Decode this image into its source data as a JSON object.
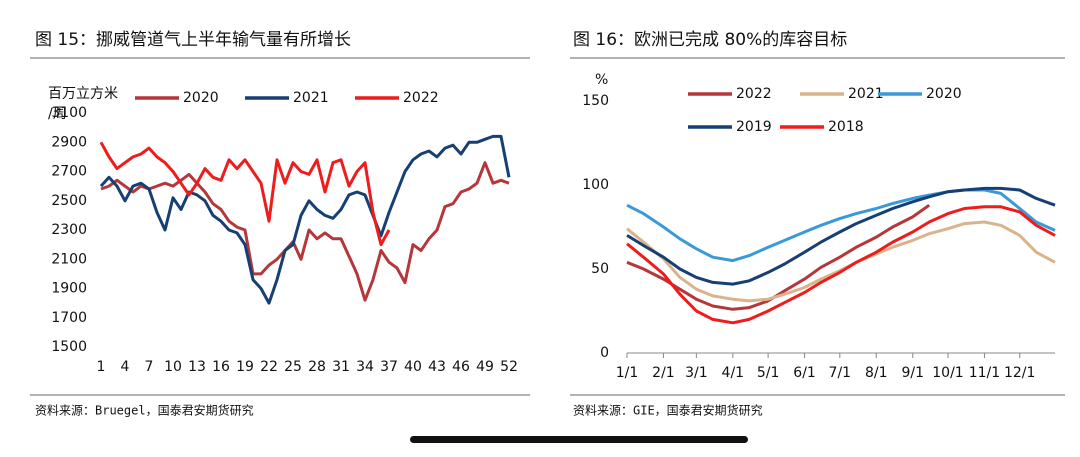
{
  "chart_data": [
    {
      "type": "line",
      "title": "图 15：挪威管道气上半年输气量有所增长",
      "y_label": [
        "百万立方米",
        "/周"
      ],
      "source": "资料来源：Bruegel，国泰君安期货研究",
      "x": [
        1,
        2,
        3,
        4,
        5,
        6,
        7,
        8,
        9,
        10,
        11,
        12,
        13,
        14,
        15,
        16,
        17,
        18,
        19,
        20,
        21,
        22,
        23,
        24,
        25,
        26,
        27,
        28,
        29,
        30,
        31,
        32,
        33,
        34,
        35,
        36,
        37,
        38,
        39,
        40,
        41,
        42,
        43,
        44,
        45,
        46,
        47,
        48,
        49,
        50,
        51,
        52
      ],
      "xlim": [
        0,
        53
      ],
      "xticks": [
        1,
        4,
        7,
        10,
        13,
        16,
        19,
        22,
        25,
        28,
        31,
        34,
        37,
        40,
        43,
        46,
        49,
        52
      ],
      "ylim": [
        1500,
        3100
      ],
      "yticks": [
        1500,
        1700,
        1900,
        2100,
        2300,
        2500,
        2700,
        2900,
        3100
      ],
      "series": [
        {
          "name": "2020",
          "color": "#b5373b",
          "values": [
            2580,
            2600,
            2640,
            2600,
            2560,
            2600,
            2580,
            2600,
            2620,
            2600,
            2640,
            2680,
            2620,
            2560,
            2480,
            2440,
            2360,
            2320,
            2300,
            2000,
            2000,
            2060,
            2100,
            2160,
            2220,
            2100,
            2300,
            2240,
            2280,
            2240,
            2240,
            2120,
            2000,
            1820,
            1960,
            2160,
            2080,
            2040,
            1940,
            2200,
            2160,
            2240,
            2300,
            2460,
            2480,
            2560,
            2580,
            2620,
            2760,
            2620,
            2640,
            2620
          ]
        },
        {
          "name": "2021",
          "color": "#163f73",
          "values": [
            2600,
            2660,
            2600,
            2500,
            2600,
            2620,
            2580,
            2420,
            2300,
            2520,
            2440,
            2560,
            2540,
            2500,
            2400,
            2360,
            2300,
            2280,
            2200,
            1960,
            1900,
            1800,
            1960,
            2160,
            2200,
            2400,
            2500,
            2440,
            2400,
            2380,
            2440,
            2540,
            2560,
            2540,
            2400,
            2260,
            2420,
            2560,
            2700,
            2780,
            2820,
            2840,
            2800,
            2860,
            2880,
            2820,
            2900,
            2900,
            2920,
            2940,
            2940,
            2660
          ]
        },
        {
          "name": "2022",
          "color": "#ee1c1c",
          "values": [
            2900,
            2800,
            2720,
            2760,
            2800,
            2820,
            2860,
            2800,
            2760,
            2700,
            2620,
            2540,
            2620,
            2720,
            2660,
            2640,
            2780,
            2720,
            2780,
            2700,
            2620,
            2360,
            2780,
            2620,
            2760,
            2700,
            2680,
            2780,
            2560,
            2760,
            2780,
            2600,
            2700,
            2760,
            2420,
            2200,
            2300,
            null,
            null,
            null,
            null,
            null,
            null,
            null,
            null,
            null,
            null,
            null,
            null,
            null,
            null,
            null
          ]
        }
      ]
    },
    {
      "type": "line",
      "title": "图 16：欧洲已完成 80%的库容目标",
      "y_label": [
        "%"
      ],
      "source": "资料来源：GIE，国泰君安期货研究",
      "x": [
        1,
        15,
        32,
        46,
        60,
        74,
        91,
        105,
        121,
        135,
        152,
        166,
        182,
        196,
        213,
        227,
        244,
        258,
        274,
        288,
        305,
        319,
        335,
        349,
        365
      ],
      "xlim": [
        1,
        365
      ],
      "xticks": [
        {
          "value": 1,
          "label": "1/1"
        },
        {
          "value": 32,
          "label": "2/1"
        },
        {
          "value": 60,
          "label": "3/1"
        },
        {
          "value": 91,
          "label": "4/1"
        },
        {
          "value": 121,
          "label": "5/1"
        },
        {
          "value": 152,
          "label": "6/1"
        },
        {
          "value": 182,
          "label": "7/1"
        },
        {
          "value": 213,
          "label": "8/1"
        },
        {
          "value": 244,
          "label": "9/1"
        },
        {
          "value": 274,
          "label": "10/1"
        },
        {
          "value": 305,
          "label": "11/1"
        },
        {
          "value": 335,
          "label": "12/1"
        }
      ],
      "ylim": [
        0,
        150
      ],
      "yticks": [
        0,
        50,
        100,
        150
      ],
      "series": [
        {
          "name": "2022",
          "color": "#b5373b",
          "values": [
            54,
            50,
            44,
            38,
            32,
            28,
            26,
            27,
            31,
            37,
            44,
            51,
            57,
            63,
            69,
            75,
            81,
            88,
            null,
            null,
            null,
            null,
            null,
            null,
            null
          ]
        },
        {
          "name": "2021",
          "color": "#d9b38c",
          "values": [
            74,
            66,
            56,
            45,
            38,
            34,
            32,
            31,
            32,
            35,
            39,
            44,
            49,
            54,
            59,
            63,
            67,
            71,
            74,
            77,
            78,
            76,
            70,
            60,
            54
          ]
        },
        {
          "name": "2020",
          "color": "#3a9ad9",
          "values": [
            88,
            83,
            75,
            68,
            62,
            57,
            55,
            58,
            63,
            67,
            72,
            76,
            80,
            83,
            86,
            89,
            92,
            94,
            96,
            97,
            97,
            95,
            86,
            78,
            73
          ]
        },
        {
          "name": "2019",
          "color": "#163f73",
          "values": [
            70,
            64,
            57,
            50,
            45,
            42,
            41,
            43,
            48,
            53,
            60,
            66,
            72,
            77,
            82,
            86,
            90,
            93,
            96,
            97,
            98,
            98,
            97,
            92,
            88
          ]
        },
        {
          "name": "2018",
          "color": "#ee1c1c",
          "values": [
            65,
            57,
            47,
            35,
            25,
            20,
            18,
            20,
            25,
            30,
            36,
            42,
            48,
            54,
            60,
            66,
            72,
            78,
            83,
            86,
            87,
            87,
            84,
            76,
            70
          ]
        }
      ]
    }
  ]
}
